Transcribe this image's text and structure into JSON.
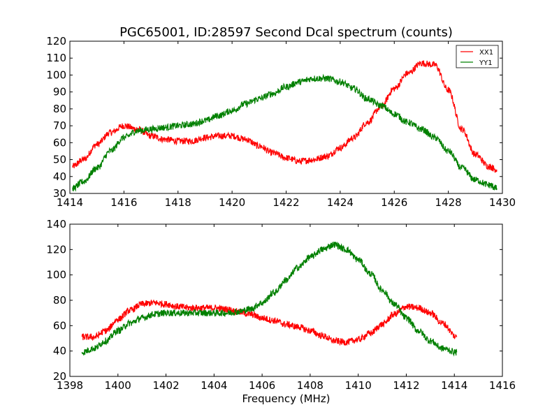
{
  "chart_data": [
    {
      "type": "line",
      "title": "PGC65001, ID:28597 Second Dcal spectrum (counts)",
      "xlabel": "",
      "ylabel": "",
      "xlim": [
        1414,
        1430
      ],
      "ylim": [
        30,
        120
      ],
      "xticks": [
        "1414",
        "1416",
        "1418",
        "1420",
        "1422",
        "1424",
        "1426",
        "1428",
        "1430"
      ],
      "yticks": [
        "30",
        "40",
        "50",
        "60",
        "70",
        "80",
        "90",
        "100",
        "110",
        "120"
      ],
      "legend": {
        "placement": "top-right",
        "entries": [
          "XX1",
          "YY1"
        ]
      },
      "series": [
        {
          "name": "XX1",
          "color": "#ff0000",
          "x": [
            1414.1,
            1414.5,
            1415.0,
            1415.5,
            1416.0,
            1416.5,
            1417.0,
            1417.5,
            1418.0,
            1418.5,
            1419.0,
            1419.5,
            1420.0,
            1420.5,
            1421.0,
            1421.5,
            1422.0,
            1422.5,
            1423.0,
            1423.5,
            1424.0,
            1424.5,
            1425.0,
            1425.5,
            1426.0,
            1426.5,
            1427.0,
            1427.5,
            1428.0,
            1428.5,
            1429.0,
            1429.5,
            1429.8
          ],
          "y": [
            46,
            50,
            59,
            66,
            70,
            68,
            64,
            62,
            61,
            61,
            63,
            64,
            64,
            62,
            58,
            54,
            51,
            49,
            50,
            52,
            57,
            63,
            72,
            81,
            92,
            101,
            107,
            106,
            91,
            68,
            53,
            46,
            44
          ]
        },
        {
          "name": "YY1",
          "color": "#008000",
          "x": [
            1414.1,
            1414.5,
            1415.0,
            1415.5,
            1416.0,
            1416.5,
            1417.0,
            1417.5,
            1418.0,
            1418.5,
            1419.0,
            1419.5,
            1420.0,
            1420.5,
            1421.0,
            1421.5,
            1422.0,
            1422.5,
            1423.0,
            1423.5,
            1424.0,
            1424.5,
            1425.0,
            1425.5,
            1426.0,
            1426.5,
            1427.0,
            1427.5,
            1428.0,
            1428.5,
            1429.0,
            1429.5,
            1429.8
          ],
          "y": [
            33,
            37,
            45,
            55,
            63,
            67,
            68,
            69,
            70,
            71,
            73,
            76,
            79,
            83,
            86,
            89,
            93,
            96,
            98,
            98,
            96,
            92,
            86,
            82,
            77,
            72,
            68,
            63,
            55,
            45,
            38,
            35,
            33
          ]
        }
      ]
    },
    {
      "type": "line",
      "title": "",
      "xlabel": "Frequency (MHz)",
      "ylabel": "",
      "xlim": [
        1398,
        1416
      ],
      "ylim": [
        20,
        140
      ],
      "xticks": [
        "1398",
        "1400",
        "1402",
        "1404",
        "1406",
        "1408",
        "1410",
        "1412",
        "1414",
        "1416"
      ],
      "yticks": [
        "20",
        "40",
        "60",
        "80",
        "100",
        "120",
        "140"
      ],
      "series": [
        {
          "name": "XX1",
          "color": "#ff0000",
          "x": [
            1398.5,
            1399.0,
            1399.5,
            1400.0,
            1400.5,
            1401.0,
            1401.5,
            1402.0,
            1402.5,
            1403.0,
            1403.5,
            1404.0,
            1404.5,
            1405.0,
            1405.5,
            1406.0,
            1406.5,
            1407.0,
            1407.5,
            1408.0,
            1408.5,
            1409.0,
            1409.5,
            1410.0,
            1410.5,
            1411.0,
            1411.5,
            1412.0,
            1412.5,
            1413.0,
            1413.5,
            1414.1
          ],
          "y": [
            51,
            51,
            56,
            65,
            72,
            77,
            78,
            77,
            75,
            74,
            74,
            74,
            73,
            71,
            69,
            66,
            64,
            61,
            59,
            56,
            52,
            48,
            47,
            49,
            54,
            61,
            69,
            75,
            74,
            70,
            62,
            51
          ]
        },
        {
          "name": "YY1",
          "color": "#008000",
          "x": [
            1398.5,
            1399.0,
            1399.5,
            1400.0,
            1400.5,
            1401.0,
            1401.5,
            1402.0,
            1402.5,
            1403.0,
            1403.5,
            1404.0,
            1404.5,
            1405.0,
            1405.5,
            1406.0,
            1406.5,
            1407.0,
            1407.5,
            1408.0,
            1408.5,
            1409.0,
            1409.5,
            1410.0,
            1410.5,
            1411.0,
            1411.5,
            1412.0,
            1412.5,
            1413.0,
            1413.5,
            1414.1
          ],
          "y": [
            39,
            42,
            48,
            56,
            62,
            66,
            69,
            70,
            70,
            70,
            70,
            70,
            70,
            71,
            73,
            78,
            86,
            96,
            106,
            114,
            120,
            124,
            120,
            112,
            101,
            88,
            77,
            66,
            56,
            48,
            42,
            39
          ]
        }
      ]
    }
  ]
}
